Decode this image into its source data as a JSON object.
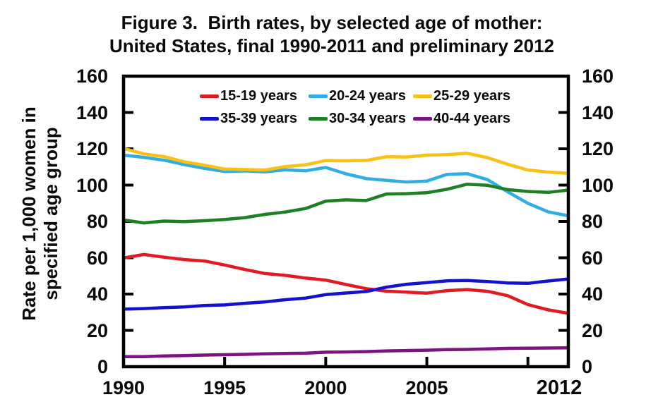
{
  "title": {
    "line1": "Figure 3.  Birth rates, by selected age of mother:",
    "line2": "United States, final 1990-2011 and preliminary 2012"
  },
  "y_axis": {
    "label_line1": "Rate per 1,000 women in",
    "label_line2": "specified age group"
  },
  "chart_data": {
    "type": "line",
    "title": "Figure 3. Birth rates, by selected age of mother: United States, final 1990-2011 and preliminary 2012",
    "xlabel": "",
    "ylabel": "Rate per 1,000 women in specified age group",
    "ylim": [
      0,
      160
    ],
    "yticks": [
      0,
      20,
      40,
      60,
      80,
      100,
      120,
      140,
      160
    ],
    "dual_y_axis": true,
    "grid": false,
    "legend_position": "top-inside-two-rows",
    "axis_color": "#000000",
    "x": [
      1990,
      1991,
      1992,
      1993,
      1994,
      1995,
      1996,
      1997,
      1998,
      1999,
      2000,
      2001,
      2002,
      2003,
      2004,
      2005,
      2006,
      2007,
      2008,
      2009,
      2010,
      2011,
      2012
    ],
    "x_tick_marks": [
      1995,
      2000,
      2005,
      2010
    ],
    "x_tick_labels": [
      {
        "year": 1990,
        "label": "1990"
      },
      {
        "year": 1995,
        "label": "1995"
      },
      {
        "year": 2000,
        "label": "2000"
      },
      {
        "year": 2005,
        "label": "2005"
      },
      {
        "year": 2012,
        "label": "2012",
        "emphasis": true
      }
    ],
    "series": [
      {
        "name": "15-19 years",
        "color": "#e01b22",
        "values": [
          59.9,
          61.8,
          60.3,
          59.0,
          58.2,
          56.0,
          53.5,
          51.3,
          50.3,
          48.8,
          47.7,
          45.3,
          43.0,
          41.6,
          41.1,
          40.5,
          41.9,
          42.5,
          41.5,
          39.1,
          34.2,
          31.3,
          29.4
        ]
      },
      {
        "name": "20-24 years",
        "color": "#30aee3",
        "values": [
          116.5,
          115.3,
          113.7,
          111.3,
          109.2,
          107.5,
          107.8,
          107.3,
          108.4,
          107.9,
          109.7,
          106.2,
          103.6,
          102.6,
          101.7,
          102.2,
          105.9,
          106.3,
          103.0,
          96.3,
          90.0,
          85.3,
          83.1
        ]
      },
      {
        "name": "25-29 years",
        "color": "#f9c116",
        "values": [
          120.2,
          117.2,
          115.7,
          112.8,
          111.0,
          108.8,
          108.6,
          108.3,
          110.2,
          111.2,
          113.5,
          113.4,
          113.6,
          115.6,
          115.5,
          116.5,
          116.8,
          117.5,
          115.1,
          111.5,
          108.3,
          107.2,
          106.5
        ]
      },
      {
        "name": "35-39 years",
        "color": "#1412cc",
        "values": [
          31.7,
          32.0,
          32.5,
          32.9,
          33.7,
          34.0,
          34.9,
          35.7,
          36.9,
          37.8,
          39.7,
          40.6,
          41.4,
          43.8,
          45.4,
          46.3,
          47.3,
          47.5,
          46.9,
          46.1,
          45.9,
          47.2,
          48.3
        ]
      },
      {
        "name": "30-34 years",
        "color": "#1d8124",
        "values": [
          80.8,
          79.2,
          80.2,
          79.9,
          80.4,
          81.1,
          82.1,
          83.9,
          85.2,
          87.1,
          91.2,
          91.9,
          91.5,
          95.1,
          95.3,
          95.8,
          97.7,
          100.5,
          99.9,
          97.5,
          96.5,
          96.0,
          97.3
        ]
      },
      {
        "name": "40-44 years",
        "color": "#7d1380",
        "values": [
          5.5,
          5.5,
          5.9,
          6.1,
          6.4,
          6.6,
          6.8,
          7.1,
          7.3,
          7.4,
          8.0,
          8.1,
          8.3,
          8.7,
          8.9,
          9.1,
          9.4,
          9.5,
          9.8,
          10.1,
          10.2,
          10.3,
          10.4
        ]
      }
    ]
  }
}
